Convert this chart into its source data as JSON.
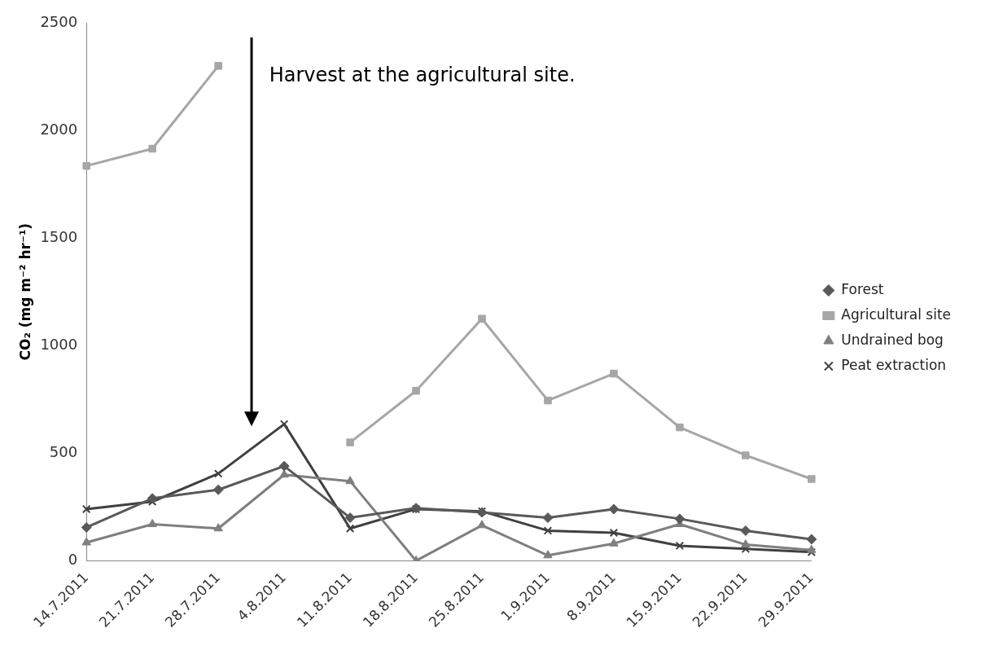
{
  "chart_data": {
    "type": "line",
    "ylabel": "CO₂ (mg m⁻² hr⁻¹)",
    "categories": [
      "14.7.2011",
      "21.7.2011",
      "28.7.2011",
      "4.8.2011",
      "11.8.2011",
      "18.8.2011",
      "25.8.2011",
      "1.9.2011",
      "8.9.2011",
      "15.9.2011",
      "22.9.2011",
      "29.9.2011"
    ],
    "series": [
      {
        "name": "Forest",
        "color": "#595959",
        "marker": "diamond",
        "values": [
          155,
          290,
          330,
          440,
          200,
          245,
          225,
          200,
          240,
          195,
          140,
          100
        ]
      },
      {
        "name": "Agricultural site",
        "color": "#a6a6a6",
        "marker": "square",
        "values": [
          1835,
          1915,
          2300,
          null,
          550,
          790,
          1125,
          745,
          870,
          620,
          490,
          380
        ]
      },
      {
        "name": "Undrained bog",
        "color": "#7f7f7f",
        "marker": "triangle",
        "values": [
          85,
          170,
          150,
          400,
          370,
          0,
          165,
          25,
          80,
          170,
          75,
          50
        ]
      },
      {
        "name": "Peat extraction",
        "color": "#404040",
        "marker": "cross",
        "values": [
          240,
          275,
          405,
          635,
          150,
          240,
          230,
          140,
          130,
          70,
          55,
          40
        ]
      }
    ],
    "ylim": [
      0,
      2500
    ],
    "yticks": [
      0,
      500,
      1000,
      1500,
      2000,
      2500
    ],
    "grid": false,
    "legend": "right",
    "annotations": [
      "Harvest at the agricultural site."
    ]
  }
}
